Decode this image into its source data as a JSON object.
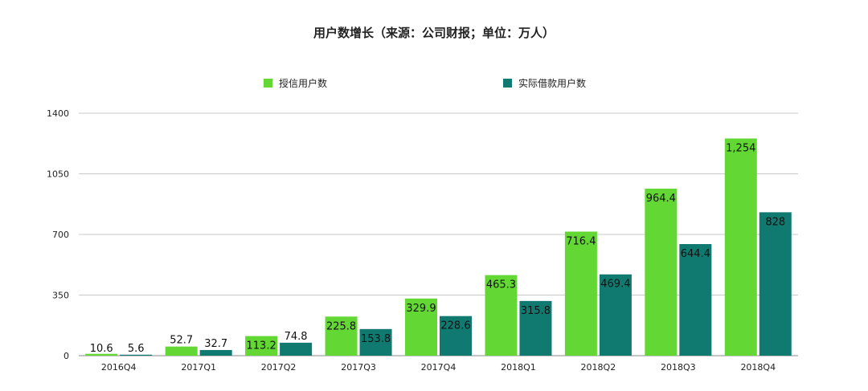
{
  "chart_data": {
    "type": "bar",
    "title": "用户数增长（来源：公司财报；单位：万人）",
    "categories": [
      "2016Q4",
      "2017Q1",
      "2017Q2",
      "2017Q3",
      "2017Q4",
      "2018Q1",
      "2018Q2",
      "2018Q3",
      "2018Q4"
    ],
    "series": [
      {
        "name": "授信用户数",
        "color": "#63d834",
        "values": [
          10.6,
          52.7,
          113.2,
          225.8,
          329.9,
          465.3,
          716.4,
          964.4,
          1254
        ],
        "labels": [
          "10.6",
          "52.7",
          "113.2",
          "225.8",
          "329.9",
          "465.3",
          "716.4",
          "964.4",
          "1,254"
        ]
      },
      {
        "name": "实际借款用户数",
        "color": "#117a70",
        "values": [
          5.6,
          32.7,
          74.8,
          153.8,
          228.6,
          315.8,
          469.4,
          644.4,
          828
        ],
        "labels": [
          "5.6",
          "32.7",
          "74.8",
          "153.8",
          "228.6",
          "315.8",
          "469.4",
          "644.4",
          "828"
        ]
      }
    ],
    "yticks": [
      "0",
      "350",
      "700",
      "1050",
      "1400"
    ],
    "ylim": [
      0,
      1400
    ],
    "grid": true,
    "legend": "top"
  }
}
